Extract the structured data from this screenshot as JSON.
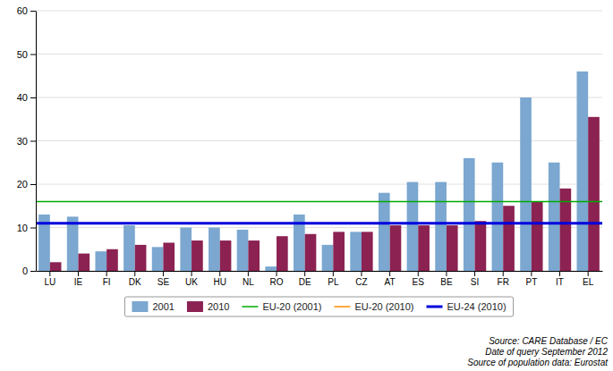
{
  "chart_data": {
    "type": "bar",
    "categories": [
      "LU",
      "IE",
      "FI",
      "DK",
      "SE",
      "UK",
      "HU",
      "NL",
      "RO",
      "DE",
      "PL",
      "CZ",
      "AT",
      "ES",
      "BE",
      "SI",
      "FR",
      "PT",
      "IT",
      "EL"
    ],
    "series": [
      {
        "name": "2001",
        "color": "#7BA7D0",
        "values": [
          13,
          12.5,
          4.5,
          10.5,
          5.5,
          10,
          10,
          9.5,
          1,
          13,
          6,
          9,
          18,
          20.5,
          20.5,
          26,
          25,
          40,
          25,
          46
        ]
      },
      {
        "name": "2010",
        "color": "#8B2252",
        "values": [
          2,
          4,
          5,
          6,
          6.5,
          7,
          7,
          7,
          8,
          8.5,
          9,
          9,
          10.5,
          10.5,
          10.5,
          11.5,
          15,
          16,
          19,
          35.5
        ]
      }
    ],
    "reference_lines": [
      {
        "name": "EU-20 (2001)",
        "value": 16,
        "color": "#00AA00"
      },
      {
        "name": "EU-20 (2010)",
        "value": 11,
        "color": "#FF8C00"
      },
      {
        "name": "EU-24 (2010)",
        "value": 11,
        "color": "#0000DD"
      }
    ],
    "ylim": [
      0,
      60
    ],
    "yticks": [
      0,
      10,
      20,
      30,
      40,
      50,
      60
    ],
    "grid": true,
    "legend": "bottom",
    "annotations": [
      "Source: CARE Database / EC",
      "Date of query September 2012",
      "Source of population data: Eurostat"
    ]
  }
}
